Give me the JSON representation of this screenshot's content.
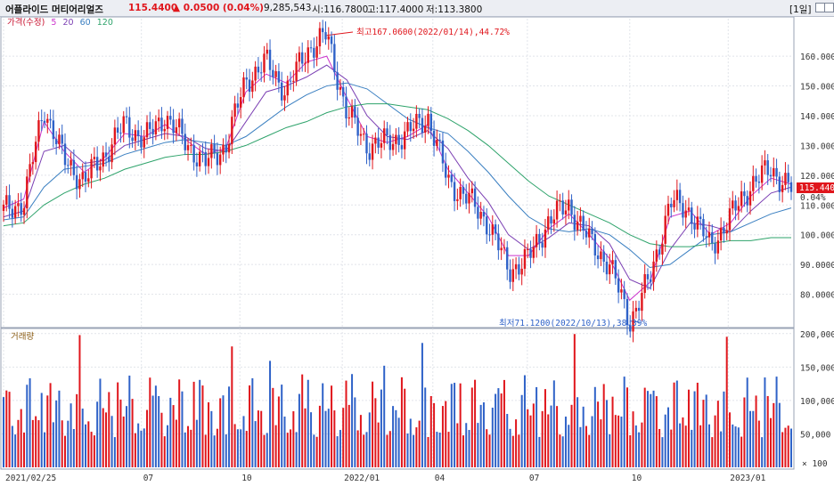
{
  "header": {
    "title": "어플라이드 머티어리얼즈",
    "price": "115.4400",
    "change": "▲ 0.0500 (0.04%)",
    "volume": "9,285,543",
    "open": "시:116.7800",
    "high": "고:117.4000",
    "low": "저:113.3800",
    "period": "[1일]"
  },
  "chart_data": {
    "type": "line",
    "x_labels": [
      "2021/02/25",
      "07",
      "10",
      "2022/01",
      "04",
      "07",
      "10",
      "2023/01"
    ],
    "price_panel": {
      "legend": {
        "price": "가격(수정)",
        "ma": [
          "5",
          "20",
          "60",
          "120"
        ]
      },
      "ylim": [
        70,
        172
      ],
      "yticks": [
        80,
        90,
        100,
        110,
        120,
        130,
        140,
        150,
        160
      ],
      "ytick_labels": [
        "80.0000",
        "90.0000",
        "100.0000",
        "110.0000",
        "120.0000",
        "130.0000",
        "140.0000",
        "150.0000",
        "160.0000"
      ],
      "current_price_label": "115.4400",
      "current_change_label": "0.04%",
      "annotations": {
        "high": "최고167.0600(2022/01/14),44.72%",
        "low": "최저71.1200(2022/10/13),38.39%"
      },
      "price_series": {
        "x": [
          "2021-02-25",
          "2021-03-15",
          "2021-04-05",
          "2021-05-01",
          "2021-05-20",
          "2021-06-15",
          "2021-07-10",
          "2021-08-05",
          "2021-09-01",
          "2021-09-25",
          "2021-10-10",
          "2021-10-25",
          "2021-11-10",
          "2021-11-25",
          "2021-12-10",
          "2021-12-25",
          "2022-01-14",
          "2022-01-28",
          "2022-02-15",
          "2022-03-01",
          "2022-03-20",
          "2022-04-05",
          "2022-04-25",
          "2022-05-15",
          "2022-06-01",
          "2022-06-20",
          "2022-07-05",
          "2022-07-25",
          "2022-08-15",
          "2022-09-01",
          "2022-09-20",
          "2022-10-13",
          "2022-10-30",
          "2022-11-15",
          "2022-12-01",
          "2022-12-20",
          "2023-01-05",
          "2023-01-20",
          "2023-02-01",
          "2023-02-10"
        ],
        "values": [
          108,
          111,
          143,
          125,
          118,
          127,
          137,
          132,
          140,
          131,
          124,
          130,
          152,
          158,
          148,
          162,
          167,
          141,
          130,
          131,
          134,
          140,
          118,
          112,
          104,
          88,
          92,
          105,
          110,
          98,
          90,
          71,
          85,
          111,
          108,
          96,
          106,
          117,
          122,
          115.44
        ]
      },
      "ma_series": [
        {
          "name": "5",
          "color": "#cc33cc",
          "values": [
            109,
            112,
            138,
            128,
            121,
            126,
            134,
            133,
            137,
            132,
            127,
            129,
            148,
            154,
            151,
            158,
            160,
            146,
            133,
            131,
            133,
            137,
            122,
            114,
            106,
            93,
            93,
            102,
            107,
            100,
            92,
            78,
            84,
            106,
            108,
            100,
            104,
            113,
            119,
            117
          ]
        },
        {
          "name": "20",
          "color": "#7b3fb3",
          "values": [
            106,
            108,
            128,
            130,
            124,
            125,
            130,
            132,
            134,
            133,
            129,
            128,
            138,
            148,
            150,
            153,
            157,
            152,
            140,
            133,
            132,
            135,
            129,
            119,
            111,
            100,
            95,
            99,
            104,
            103,
            97,
            85,
            82,
            95,
            104,
            103,
            101,
            108,
            114,
            116
          ]
        },
        {
          "name": "60",
          "color": "#3a7fc1",
          "values": [
            105,
            106,
            116,
            122,
            123,
            124,
            127,
            129,
            131,
            132,
            131,
            130,
            133,
            138,
            143,
            147,
            150,
            151,
            149,
            144,
            139,
            136,
            134,
            128,
            121,
            113,
            106,
            102,
            101,
            102,
            100,
            95,
            89,
            90,
            95,
            100,
            101,
            104,
            107,
            109
          ]
        },
        {
          "name": "120",
          "color": "#2ea36b",
          "values": [
            103,
            104,
            110,
            114,
            117,
            119,
            122,
            124,
            126,
            127,
            127,
            128,
            130,
            133,
            136,
            138,
            141,
            143,
            144,
            144,
            143,
            142,
            139,
            135,
            130,
            124,
            118,
            113,
            110,
            107,
            104,
            100,
            97,
            96,
            96,
            97,
            98,
            98,
            99,
            99
          ]
        }
      ]
    },
    "volume_panel": {
      "legend": "거래량",
      "ylim": [
        0,
        205000
      ],
      "yticks": [
        50000,
        100000,
        150000,
        200000
      ],
      "ytick_labels": [
        "50,000",
        "100,000",
        "150,000",
        "200,000"
      ],
      "unit_label": "× 100"
    },
    "colors": {
      "up": "#e0161c",
      "down": "#2f62c8",
      "grid": "#e1e4ea",
      "panel_border": "#9aa3b5"
    }
  }
}
